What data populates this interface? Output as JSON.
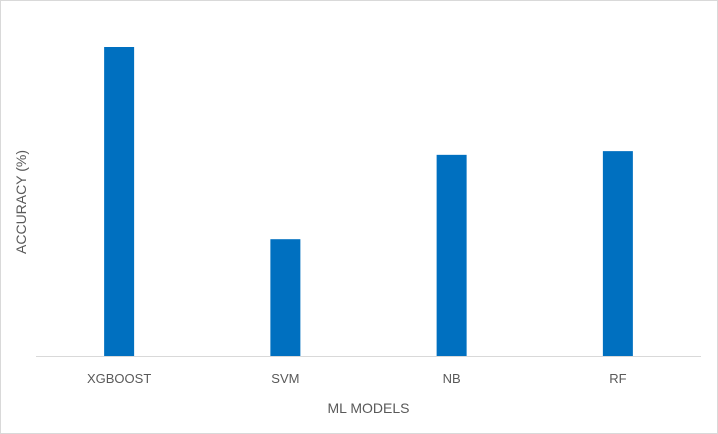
{
  "chart_data": {
    "type": "bar",
    "title": "",
    "xlabel": "ML MODELS",
    "ylabel": "ACCURACY (%)",
    "categories": [
      "XGBOOST",
      "SVM",
      "NB",
      "RF"
    ],
    "values": [
      100,
      37.8,
      65.1,
      66.3
    ],
    "ylim": [
      0,
      100
    ],
    "grid": false,
    "legend": "none",
    "bar_color": "#0070c0",
    "axis_color": "#d9d9d9",
    "text_color": "#595959"
  }
}
